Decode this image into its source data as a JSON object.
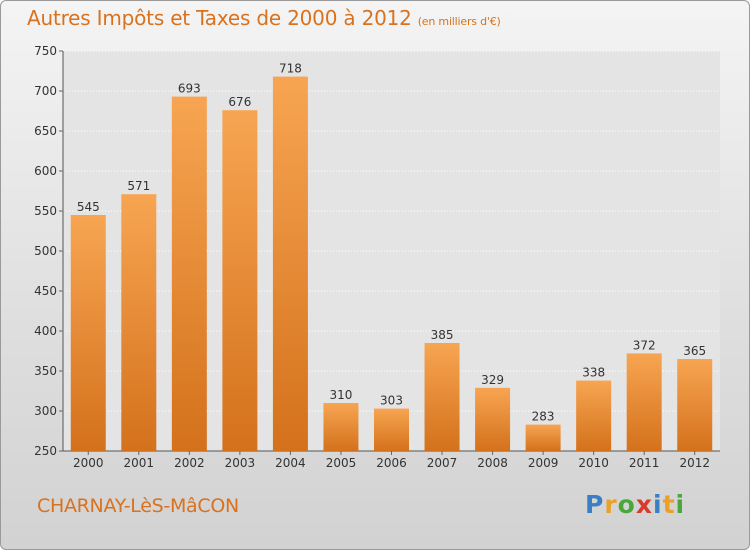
{
  "title": "Autres Impôts et Taxes de 2000 à 2012",
  "unit": "(en milliers d'€)",
  "place": "CHARNAY-LèS-MâCON",
  "brand": {
    "letters": [
      "P",
      "r",
      "o",
      "x",
      "i",
      "t",
      "i"
    ],
    "colors": [
      "#3a7fc4",
      "#e9a12a",
      "#4aa83a",
      "#d83b2c",
      "#3a7fc4",
      "#e9a12a",
      "#4aa83a"
    ]
  },
  "colors": {
    "bar": "#f08c2e",
    "accent": "#d9721e"
  },
  "chart_data": {
    "type": "bar",
    "categories": [
      "2000",
      "2001",
      "2002",
      "2003",
      "2004",
      "2005",
      "2006",
      "2007",
      "2008",
      "2009",
      "2010",
      "2011",
      "2012"
    ],
    "values": [
      545,
      571,
      693,
      676,
      718,
      310,
      303,
      385,
      329,
      283,
      338,
      372,
      365
    ],
    "ylim": [
      250,
      750
    ],
    "yticks": [
      250,
      300,
      350,
      400,
      450,
      500,
      550,
      600,
      650,
      700,
      750
    ],
    "grid": true
  }
}
